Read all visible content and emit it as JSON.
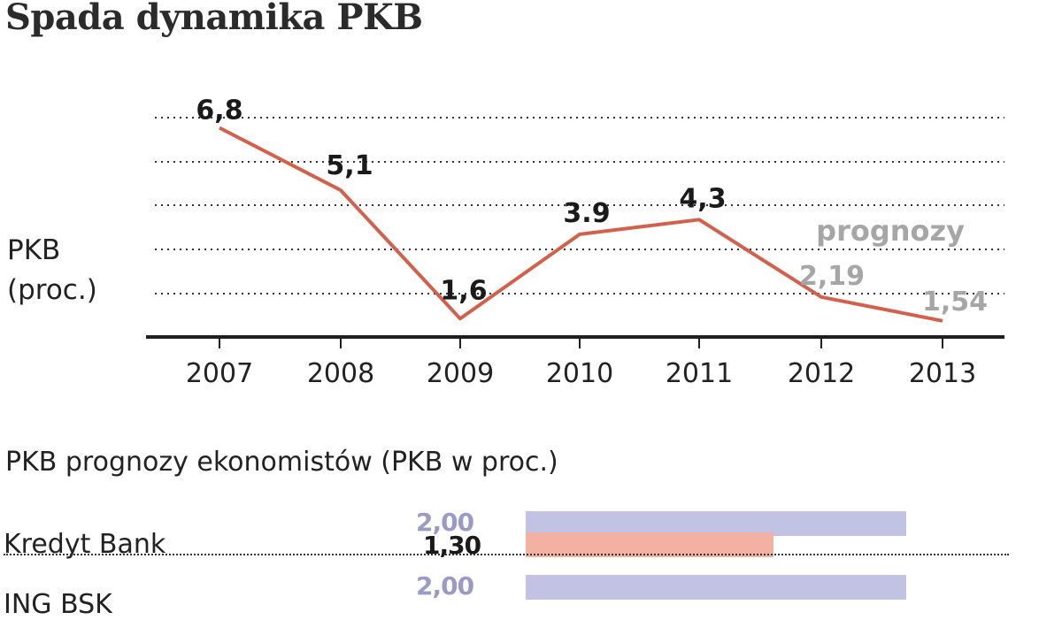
{
  "title": "Spada dynamika PKB",
  "ylabel_line1": "PKB",
  "ylabel_line2": "(proc.)",
  "forecast_label": "prognozy",
  "section2_title": "PKB prognozy ekonomistów (PKB w proc.)",
  "colors": {
    "line": "#d2604a",
    "forecast_text": "#a6a6a6",
    "bar_forecast": "#c2c2e2",
    "bar_actual": "#f3b1a3",
    "forecast_value": "#9a9ac6"
  },
  "chart_data": [
    {
      "type": "line",
      "title": "Spada dynamika PKB",
      "ylabel": "PKB (proc.)",
      "categories": [
        "2007",
        "2008",
        "2009",
        "2010",
        "2011",
        "2012",
        "2013"
      ],
      "values": [
        6.8,
        5.1,
        1.6,
        3.9,
        4.3,
        2.19,
        1.54
      ],
      "data_labels": [
        "6,8",
        "5,1",
        "1,6",
        "3.9",
        "4,3",
        "2,19",
        "1,54"
      ],
      "forecast_categories": [
        "2012",
        "2013"
      ],
      "ylim": [
        0,
        8
      ],
      "grid": "dotted horizontal"
    },
    {
      "type": "bar",
      "title": "PKB prognozy ekonomistów (PKB w proc.)",
      "categories": [
        "Kredyt Bank",
        "ING BSK"
      ],
      "series": [
        {
          "values": [
            2.0,
            2.0
          ],
          "labels": [
            "2,00",
            "2,00"
          ]
        },
        {
          "values": [
            1.3,
            null
          ],
          "labels": [
            "1,30",
            ""
          ]
        }
      ]
    }
  ]
}
